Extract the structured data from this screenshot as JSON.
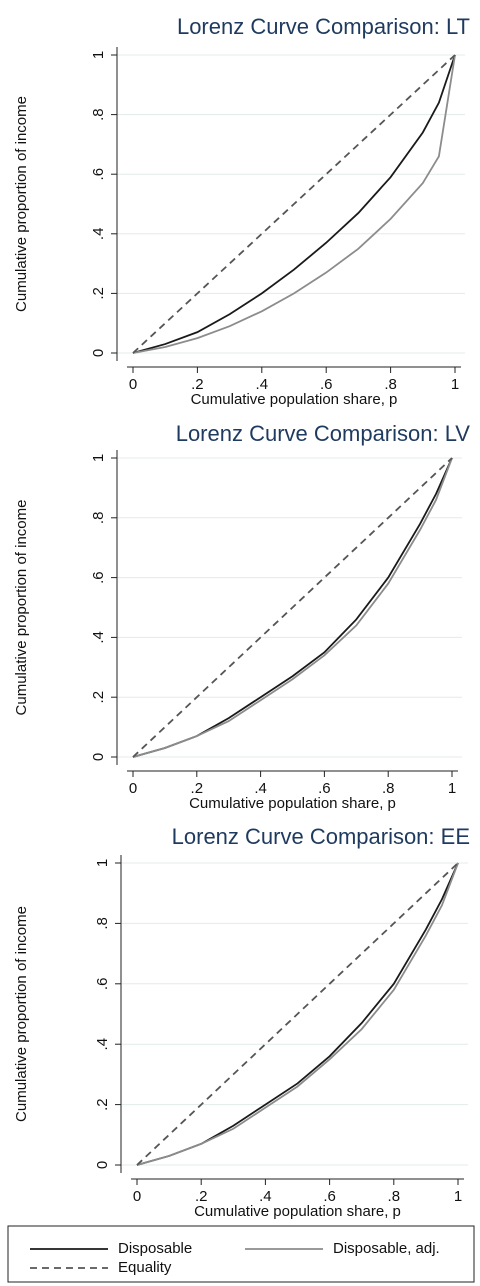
{
  "chart_data": [
    {
      "type": "line",
      "title": "Lorenz Curve Comparison: LT",
      "x_label": "Cumulative population share, p",
      "y_label": "Cumulative proportion of income",
      "x": [
        0,
        0.1,
        0.2,
        0.3,
        0.4,
        0.5,
        0.6,
        0.7,
        0.8,
        0.9,
        0.95,
        1
      ],
      "series": [
        {
          "name": "Disposable",
          "color": "#1a1a1a",
          "dash": false,
          "values": [
            0,
            0.03,
            0.07,
            0.13,
            0.2,
            0.28,
            0.37,
            0.47,
            0.59,
            0.74,
            0.84,
            1
          ]
        },
        {
          "name": "Disposable, adj.",
          "color": "#8c8c8c",
          "dash": false,
          "values": [
            0,
            0.02,
            0.05,
            0.09,
            0.14,
            0.2,
            0.27,
            0.35,
            0.45,
            0.57,
            0.66,
            1
          ]
        },
        {
          "name": "Equality",
          "color": "#555555",
          "dash": true,
          "values": [
            0,
            0.1,
            0.2,
            0.3,
            0.4,
            0.5,
            0.6,
            0.7,
            0.8,
            0.9,
            0.95,
            1
          ]
        }
      ],
      "xlim": [
        0,
        1
      ],
      "ylim": [
        0,
        1
      ],
      "xticks": [
        0,
        {
          "value": 0.2,
          "label": ".2"
        },
        {
          "value": 0.4,
          "label": ".4"
        },
        {
          "value": 0.6,
          "label": ".6"
        },
        {
          "value": 0.8,
          "label": ".8"
        },
        1
      ],
      "yticks": [
        0,
        {
          "value": 0.2,
          "label": ".2"
        },
        {
          "value": 0.4,
          "label": ".4"
        },
        {
          "value": 0.6,
          "label": ".6"
        },
        {
          "value": 0.8,
          "label": ".8"
        },
        1
      ],
      "grid": true
    },
    {
      "type": "line",
      "title": "Lorenz Curve Comparison: LV",
      "x_label": "Cumulative population share, p",
      "y_label": "Cumulative proportion of income",
      "x": [
        0,
        0.1,
        0.2,
        0.3,
        0.4,
        0.5,
        0.6,
        0.7,
        0.8,
        0.9,
        0.95,
        1
      ],
      "series": [
        {
          "name": "Disposable",
          "color": "#1a1a1a",
          "dash": false,
          "values": [
            0,
            0.03,
            0.07,
            0.13,
            0.2,
            0.27,
            0.35,
            0.46,
            0.6,
            0.78,
            0.88,
            1
          ]
        },
        {
          "name": "Disposable, adj.",
          "color": "#8c8c8c",
          "dash": false,
          "values": [
            0,
            0.03,
            0.07,
            0.12,
            0.19,
            0.26,
            0.34,
            0.44,
            0.58,
            0.76,
            0.86,
            1
          ]
        },
        {
          "name": "Equality",
          "color": "#555555",
          "dash": true,
          "values": [
            0,
            0.1,
            0.2,
            0.3,
            0.4,
            0.5,
            0.6,
            0.7,
            0.8,
            0.9,
            0.95,
            1
          ]
        }
      ],
      "xlim": [
        0,
        1
      ],
      "ylim": [
        0,
        1
      ],
      "xticks": [
        0,
        {
          "value": 0.2,
          "label": ".2"
        },
        {
          "value": 0.4,
          "label": ".4"
        },
        {
          "value": 0.6,
          "label": ".6"
        },
        {
          "value": 0.8,
          "label": ".8"
        },
        1
      ],
      "yticks": [
        0,
        {
          "value": 0.2,
          "label": ".2"
        },
        {
          "value": 0.4,
          "label": ".4"
        },
        {
          "value": 0.6,
          "label": ".6"
        },
        {
          "value": 0.8,
          "label": ".8"
        },
        1
      ],
      "grid": true
    },
    {
      "type": "line",
      "title": "Lorenz Curve Comparison: EE",
      "x_label": "Cumulative population share, p",
      "y_label": "Cumulative proportion of income",
      "x": [
        0,
        0.1,
        0.2,
        0.3,
        0.4,
        0.5,
        0.6,
        0.7,
        0.8,
        0.9,
        0.95,
        1
      ],
      "series": [
        {
          "name": "Disposable",
          "color": "#1a1a1a",
          "dash": false,
          "values": [
            0,
            0.03,
            0.07,
            0.13,
            0.2,
            0.27,
            0.36,
            0.47,
            0.6,
            0.78,
            0.88,
            1
          ]
        },
        {
          "name": "Disposable, adj.",
          "color": "#8c8c8c",
          "dash": false,
          "values": [
            0,
            0.03,
            0.07,
            0.12,
            0.19,
            0.26,
            0.35,
            0.45,
            0.58,
            0.76,
            0.86,
            1
          ]
        },
        {
          "name": "Equality",
          "color": "#555555",
          "dash": true,
          "values": [
            0,
            0.1,
            0.2,
            0.3,
            0.4,
            0.5,
            0.6,
            0.7,
            0.8,
            0.9,
            0.95,
            1
          ]
        }
      ],
      "xlim": [
        0,
        1
      ],
      "ylim": [
        0,
        1
      ],
      "xticks": [
        0,
        {
          "value": 0.2,
          "label": ".2"
        },
        {
          "value": 0.4,
          "label": ".4"
        },
        {
          "value": 0.6,
          "label": ".6"
        },
        {
          "value": 0.8,
          "label": ".8"
        },
        1
      ],
      "yticks": [
        0,
        {
          "value": 0.2,
          "label": ".2"
        },
        {
          "value": 0.4,
          "label": ".4"
        },
        {
          "value": 0.6,
          "label": ".6"
        },
        {
          "value": 0.8,
          "label": ".8"
        },
        1
      ],
      "grid": true
    }
  ]
}
